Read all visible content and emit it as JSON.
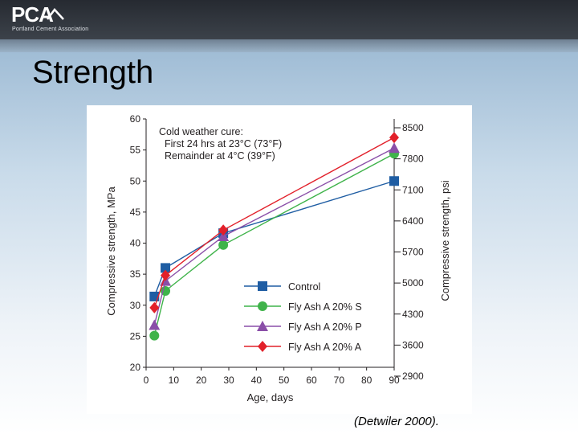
{
  "header": {
    "logo_text": "PCA",
    "logo_subtitle": "Portland Cement Association"
  },
  "slide": {
    "title": "Strength",
    "citation": "(Detwiler 2000)."
  },
  "colors": {
    "control": "#1f5da3",
    "fly_ash_s": "#3fb34a",
    "fly_ash_p": "#8a4fa8",
    "fly_ash_a": "#e2202a"
  },
  "chart_data": {
    "type": "line",
    "annotation": [
      "Cold weather cure:",
      "First 24 hrs at 23°C (73°F)",
      "Remainder at 4°C (39°F)"
    ],
    "xlabel": "Age, days",
    "ylabel": "Compressive strength, MPa",
    "y2label": "Compressive strength, psi",
    "xlim": [
      0,
      90
    ],
    "ylim": [
      20,
      60
    ],
    "xticks": [
      0,
      10,
      20,
      30,
      40,
      50,
      60,
      70,
      80,
      90
    ],
    "yticks": [
      20,
      25,
      30,
      35,
      40,
      45,
      50,
      55,
      60
    ],
    "y2ticks": [
      "2900",
      "3600",
      "4300",
      "5000",
      "5700",
      "6400",
      "7100",
      "7800",
      "8500"
    ],
    "legend_position": "lower-right",
    "grid": false,
    "series": [
      {
        "name": "Control",
        "marker": "square",
        "color": "#1f5da3",
        "points": [
          [
            3,
            31.4
          ],
          [
            7,
            36.0
          ],
          [
            28,
            41.6
          ],
          [
            90,
            50.0
          ]
        ]
      },
      {
        "name": "Fly Ash A 20% S",
        "marker": "circle",
        "color": "#3fb34a",
        "points": [
          [
            3,
            25.1
          ],
          [
            7,
            32.3
          ],
          [
            28,
            39.7
          ],
          [
            90,
            54.4
          ]
        ]
      },
      {
        "name": "Fly Ash A 20% P",
        "marker": "triangle",
        "color": "#8a4fa8",
        "points": [
          [
            3,
            26.8
          ],
          [
            7,
            33.9
          ],
          [
            28,
            41.1
          ],
          [
            90,
            55.3
          ]
        ]
      },
      {
        "name": "Fly Ash A 20% A",
        "marker": "diamond",
        "color": "#e2202a",
        "points": [
          [
            3,
            29.6
          ],
          [
            7,
            34.8
          ],
          [
            28,
            42.1
          ],
          [
            90,
            57.0
          ]
        ]
      }
    ]
  }
}
